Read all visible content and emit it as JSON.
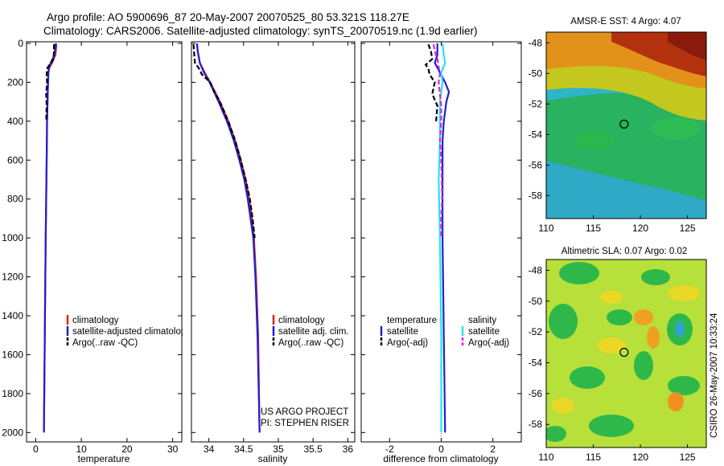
{
  "figure": {
    "title_line1": "Argo profile: AO 5900696_87 20-May-2007 20070525_80 53.321S 118.27E",
    "title_line2": "Climatology: CARS2006. Satellite-adjusted climatology: synTS_20070519.nc (1.9d earlier)",
    "side_text": "CSIRO 26-May-2007 10:33:24",
    "project_line1": "US ARGO PROJECT",
    "project_line2": "PI: STEPHEN RISER"
  },
  "colors": {
    "climatology": "#dd2222",
    "satellite": "#1f1fd6",
    "argo": "#000000",
    "satellite_diff": "#22e5e5",
    "argo_diff": "#e020e0"
  },
  "chart_data": [
    {
      "type": "line",
      "name": "temperature-profile",
      "xlabel": "temperature",
      "ylabel": "",
      "xlim": [
        -2,
        32
      ],
      "ylim": [
        2040,
        0
      ],
      "xticks": [
        "0",
        "10",
        "20",
        "30"
      ],
      "yticks": [
        "0",
        "200",
        "400",
        "600",
        "800",
        "1000",
        "1200",
        "1400",
        "1600",
        "1800",
        "2000"
      ],
      "legend": [
        "climatology",
        "satellite-adjusted climatology",
        "Argo(..raw -QC)"
      ],
      "series": [
        {
          "name": "climatology",
          "depth": [
            0,
            20,
            60,
            100,
            125,
            150,
            200,
            300,
            400,
            600,
            800,
            1000,
            1500,
            2000
          ],
          "values": [
            4.5,
            4.5,
            4.3,
            3.6,
            3.0,
            2.8,
            2.7,
            2.6,
            2.5,
            2.4,
            2.3,
            2.2,
            2.0,
            1.8
          ]
        },
        {
          "name": "satellite-adjusted climatology",
          "depth": [
            0,
            20,
            60,
            100,
            125,
            150,
            200,
            300,
            400,
            600,
            800,
            1000,
            1500,
            2000
          ],
          "values": [
            4.3,
            4.3,
            4.1,
            3.3,
            2.9,
            2.8,
            2.7,
            2.6,
            2.5,
            2.4,
            2.3,
            2.2,
            2.0,
            1.8
          ]
        },
        {
          "name": "Argo(..raw -QC)",
          "depth": [
            5,
            40,
            80,
            110,
            130,
            160,
            200,
            260,
            320,
            400
          ],
          "values": [
            4.0,
            4.0,
            3.9,
            3.0,
            2.5,
            2.4,
            2.5,
            2.3,
            2.4,
            2.3
          ]
        }
      ]
    },
    {
      "type": "line",
      "name": "salinity-profile",
      "xlabel": "salinity",
      "xlim": [
        33.75,
        36.1
      ],
      "ylim": [
        2040,
        0
      ],
      "xticks": [
        "34",
        "34.5",
        "35",
        "35.5",
        "36"
      ],
      "legend": [
        "climatology",
        "satellite adj. clim.",
        "Argo(..raw -QC)"
      ],
      "series": [
        {
          "name": "climatology",
          "depth": [
            0,
            40,
            100,
            150,
            200,
            300,
            400,
            500,
            600,
            700,
            800,
            900,
            1000,
            1200,
            1500,
            2000
          ],
          "values": [
            33.83,
            33.84,
            33.87,
            33.94,
            34.02,
            34.16,
            34.28,
            34.38,
            34.46,
            34.53,
            34.58,
            34.62,
            34.65,
            34.68,
            34.71,
            34.73
          ]
        },
        {
          "name": "satellite adj. clim.",
          "depth": [
            0,
            40,
            100,
            150,
            200,
            300,
            400,
            500,
            600,
            700,
            800,
            900,
            1000,
            1200,
            1500,
            2000
          ],
          "values": [
            33.83,
            33.84,
            33.87,
            33.93,
            34.01,
            34.14,
            34.26,
            34.36,
            34.44,
            34.51,
            34.56,
            34.6,
            34.64,
            34.67,
            34.7,
            34.73
          ]
        },
        {
          "name": "Argo(..raw -QC)",
          "depth": [
            5,
            60,
            100,
            130,
            160,
            200,
            250,
            300,
            400,
            500,
            600,
            700,
            800,
            900,
            1000
          ],
          "values": [
            33.78,
            33.79,
            33.8,
            33.86,
            33.9,
            34.02,
            34.08,
            34.16,
            34.28,
            34.38,
            34.46,
            34.53,
            34.59,
            34.63,
            34.66
          ]
        }
      ]
    },
    {
      "type": "line",
      "name": "difference-profile",
      "xlabel": "difference from climatology",
      "xlim": [
        -3.1,
        3.1
      ],
      "ylim": [
        2040,
        0
      ],
      "xticks": [
        "-2",
        "0",
        "2"
      ],
      "legend_groups": [
        {
          "heading": "temperature",
          "items": [
            "satellite",
            "Argo(-adj)"
          ]
        },
        {
          "heading": "salinity",
          "items": [
            "satellite",
            "Argo(-adj)"
          ]
        }
      ],
      "series": [
        {
          "name": "temperature satellite",
          "depth": [
            0,
            60,
            100,
            150,
            200,
            250,
            300,
            400,
            500,
            700,
            1000,
            1500,
            2000
          ],
          "values": [
            -0.15,
            -0.15,
            -0.25,
            -0.05,
            0.15,
            0.3,
            0.2,
            0.1,
            0.05,
            0.05,
            0.05,
            0.1,
            0.15
          ]
        },
        {
          "name": "temperature Argo(-adj)",
          "depth": [
            5,
            40,
            80,
            110,
            130,
            160,
            200,
            260,
            320,
            400
          ],
          "values": [
            -0.5,
            -0.4,
            -0.35,
            -0.6,
            -0.5,
            -0.45,
            -0.25,
            -0.35,
            -0.15,
            -0.2
          ]
        },
        {
          "name": "salinity satellite",
          "depth": [
            0,
            60,
            100,
            150,
            200,
            300,
            500,
            700,
            1000,
            1500,
            2000
          ],
          "values": [
            0.05,
            0.1,
            0.15,
            0.0,
            0.05,
            -0.05,
            -0.05,
            -0.1,
            -0.05,
            0.0,
            0.0
          ]
        },
        {
          "name": "salinity Argo(-adj)",
          "depth": [
            5,
            40,
            80,
            120,
            160,
            200,
            260,
            320,
            400,
            500,
            600,
            700,
            800,
            900,
            1000
          ],
          "values": [
            -0.3,
            -0.25,
            -0.15,
            -0.1,
            -0.05,
            -0.1,
            -0.05,
            0.0,
            0.0,
            -0.05,
            0.0,
            0.02,
            0.03,
            0.0,
            0.0
          ]
        }
      ]
    },
    {
      "type": "heatmap",
      "name": "sst-map",
      "title": "AMSR-E SST: 4  Argo: 4.07",
      "xlim": [
        110,
        127
      ],
      "ylim": [
        -59.5,
        -47.3
      ],
      "xticks": [
        "110",
        "115",
        "120",
        "125"
      ],
      "yticks": [
        "-48",
        "-50",
        "-52",
        "-54",
        "-56",
        "-58"
      ],
      "marker": {
        "lon": 118.27,
        "lat": -53.321
      }
    },
    {
      "type": "heatmap",
      "name": "sla-map",
      "title": "Altimetric SLA: 0.07  Argo: 0.02",
      "xlim": [
        110,
        127
      ],
      "ylim": [
        -59.5,
        -47.3
      ],
      "xticks": [
        "110",
        "115",
        "120",
        "125"
      ],
      "yticks": [
        "-48",
        "-50",
        "-52",
        "-54",
        "-56",
        "-58"
      ],
      "marker": {
        "lon": 118.27,
        "lat": -53.321
      }
    }
  ]
}
